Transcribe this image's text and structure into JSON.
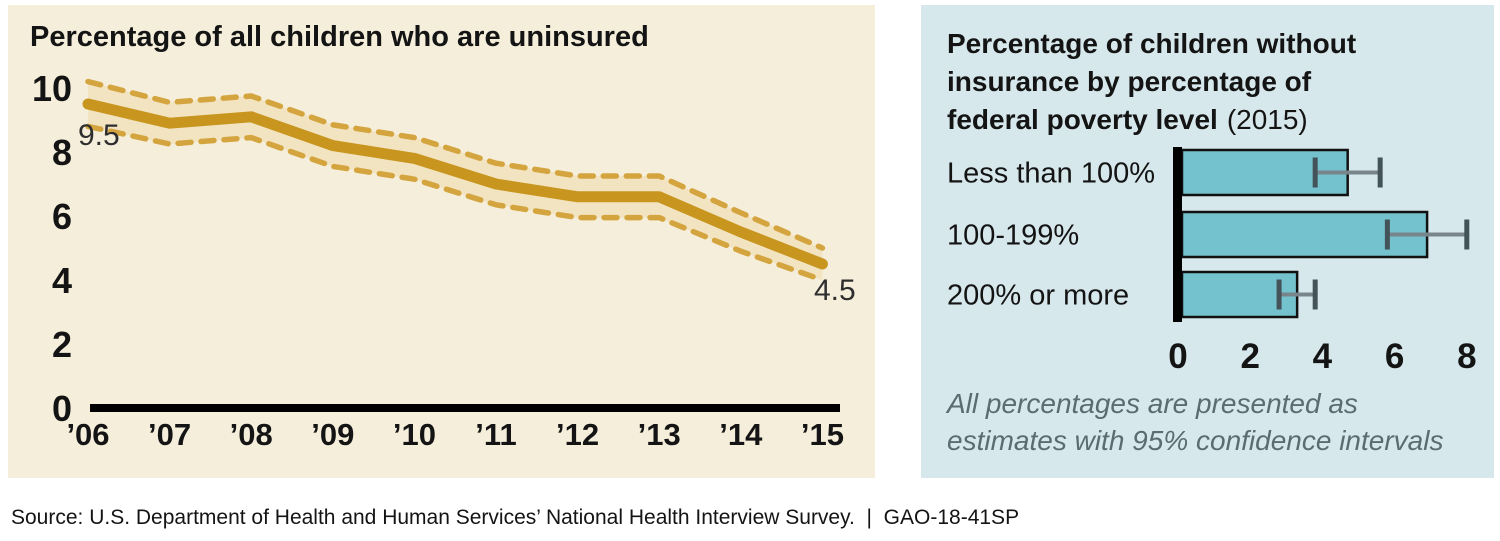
{
  "source_line": "Source: U.S. Department of Health and Human Services’ National Health Interview Survey.  |  GAO-18-41SP",
  "left_panel": {
    "bg": "#F5EEDB",
    "title": "Percentage of all children who are uninsured"
  },
  "right_panel": {
    "bg": "#D7E8EC",
    "title_lines": [
      "Percentage of children without",
      "insurance by percentage of",
      "federal poverty level"
    ],
    "title_year": "(2015)",
    "note_lines": [
      "All percentages are presented as",
      "estimates with 95% confidence intervals"
    ]
  },
  "chart_data": [
    {
      "type": "line",
      "title": "Percentage of all children who are uninsured",
      "x": [
        "’06",
        "’07",
        "’08",
        "’09",
        "’10",
        "’11",
        "’12",
        "’13",
        "’14",
        "’15"
      ],
      "values": [
        9.5,
        8.9,
        9.1,
        8.2,
        7.8,
        7.0,
        6.6,
        6.6,
        5.5,
        4.5
      ],
      "ci_upper": [
        10.2,
        9.55,
        9.75,
        8.85,
        8.45,
        7.65,
        7.25,
        7.25,
        6.1,
        5.0
      ],
      "ci_lower": [
        8.8,
        8.25,
        8.45,
        7.55,
        7.15,
        6.35,
        5.95,
        5.95,
        4.9,
        4.0
      ],
      "first_point_label": "9.5",
      "last_point_label": "4.5",
      "ylim": [
        0,
        10
      ],
      "yticks": [
        0,
        2,
        4,
        6,
        8,
        10
      ],
      "grid": false,
      "line_color": "#C8961E",
      "band_fill": "#F2E3C1",
      "band_edge_color": "#D4A53E",
      "axis_color": "#000000"
    },
    {
      "type": "bar",
      "orientation": "horizontal",
      "title": "Percentage of children without insurance by percentage of federal poverty level (2015)",
      "categories": [
        "Less than 100%",
        "100-199%",
        "200% or more"
      ],
      "values": [
        4.7,
        6.9,
        3.3
      ],
      "ci": [
        [
          3.8,
          5.6
        ],
        [
          5.8,
          8.0
        ],
        [
          2.8,
          3.8
        ]
      ],
      "xlim": [
        0,
        8
      ],
      "xticks": [
        0,
        2,
        4,
        6,
        8
      ],
      "grid": false,
      "note": "All percentages are presented as estimates with 95% confidence intervals",
      "bar_fill": "#74C2CD",
      "bar_edge_color": "#111111",
      "error_line_color": "#78868B",
      "error_cap_color": "#44535A",
      "axis_color": "#000000"
    }
  ]
}
